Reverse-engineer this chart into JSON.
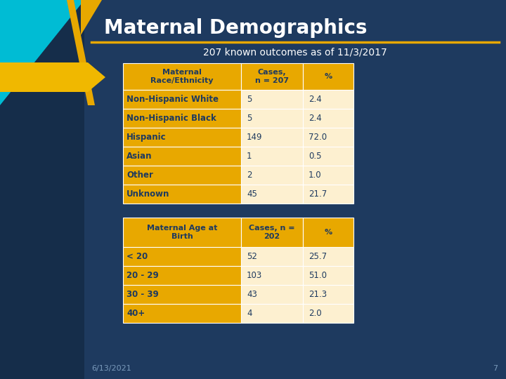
{
  "title": "Maternal Demographics",
  "subtitle": "207 known outcomes as of 11/3/2017",
  "bg_color": "#1e3a5f",
  "title_color": "#ffffff",
  "subtitle_color": "#ffffff",
  "table1_header": [
    "Maternal\nRace/Ethnicity",
    "Cases,\nn = 207",
    "%"
  ],
  "table1_rows": [
    [
      "Non-Hispanic White",
      "5",
      "2.4"
    ],
    [
      "Non-Hispanic Black",
      "5",
      "2.4"
    ],
    [
      "Hispanic",
      "149",
      "72.0"
    ],
    [
      "Asian",
      "1",
      "0.5"
    ],
    [
      "Other",
      "2",
      "1.0"
    ],
    [
      "Unknown",
      "45",
      "21.7"
    ]
  ],
  "table2_header": [
    "Maternal Age at\nBirth",
    "Cases, n =\n202",
    "%"
  ],
  "table2_rows": [
    [
      "< 20",
      "52",
      "25.7"
    ],
    [
      "20 - 29",
      "103",
      "51.0"
    ],
    [
      "30 - 39",
      "43",
      "21.3"
    ],
    [
      "40+",
      "4",
      "2.0"
    ]
  ],
  "header_bg": "#e8a800",
  "header_text": "#1e3a5f",
  "col1_bg": "#e8a800",
  "col23_bg": "#fdf0d0",
  "row_text": "#1e3a5f",
  "footer_date": "6/13/2021",
  "footer_page": "7",
  "gold_color": "#e8a800",
  "gold_arrow_color": "#f0b800",
  "cyan_color": "#00bcd4",
  "left_bg": "#152d4a",
  "gold_stripe_color": "#e8a800"
}
